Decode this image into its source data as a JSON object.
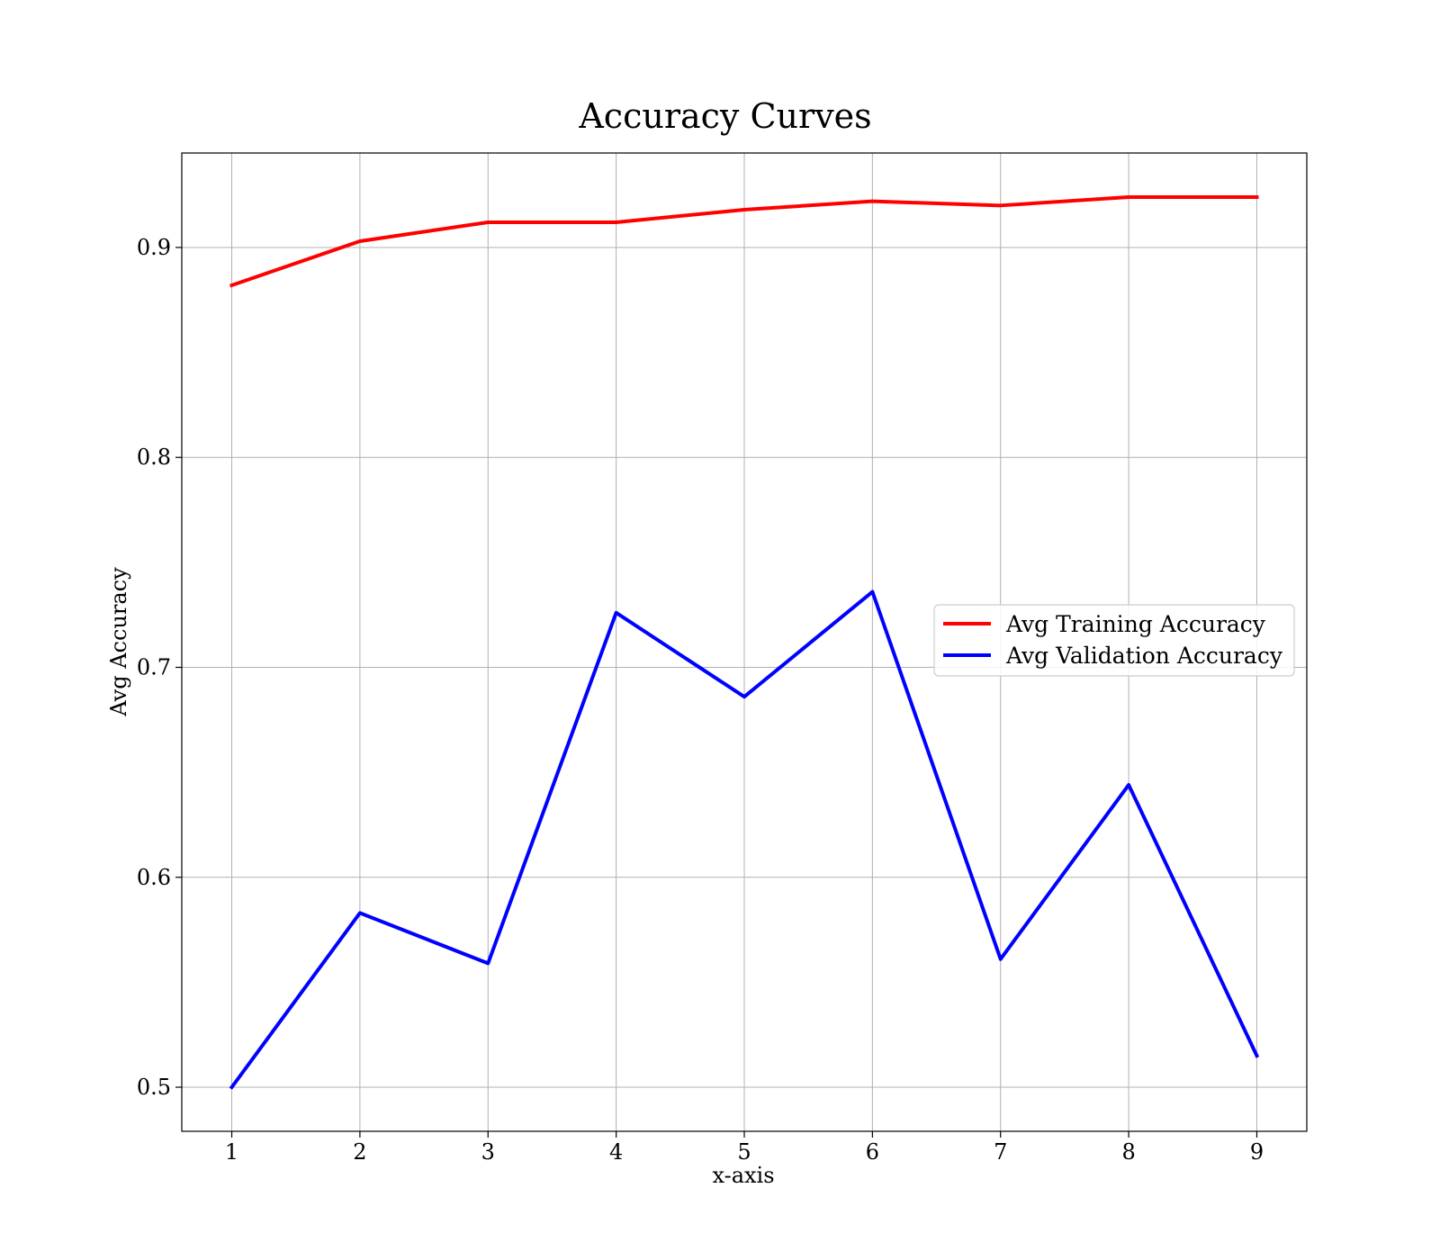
{
  "chart_data": {
    "type": "line",
    "title": "Accuracy Curves",
    "xlabel": "x-axis",
    "ylabel": "Avg Accuracy",
    "x": [
      1,
      2,
      3,
      4,
      5,
      6,
      7,
      8,
      9
    ],
    "xlim": [
      0.61,
      9.39
    ],
    "ylim": [
      0.479,
      0.945
    ],
    "xticks": [
      1,
      2,
      3,
      4,
      5,
      6,
      7,
      8,
      9
    ],
    "yticks": [
      0.5,
      0.6,
      0.7,
      0.8,
      0.9
    ],
    "ytick_labels": [
      "0.5",
      "0.6",
      "0.7",
      "0.8",
      "0.9"
    ],
    "grid": true,
    "legend_position": "center-right",
    "series": [
      {
        "name": "Avg Training Accuracy",
        "color": "#ff0000",
        "values": [
          0.882,
          0.903,
          0.912,
          0.912,
          0.918,
          0.922,
          0.92,
          0.924,
          0.924
        ]
      },
      {
        "name": "Avg Validation Accuracy",
        "color": "#0000ff",
        "values": [
          0.5,
          0.583,
          0.559,
          0.726,
          0.686,
          0.736,
          0.561,
          0.644,
          0.515
        ]
      }
    ]
  }
}
